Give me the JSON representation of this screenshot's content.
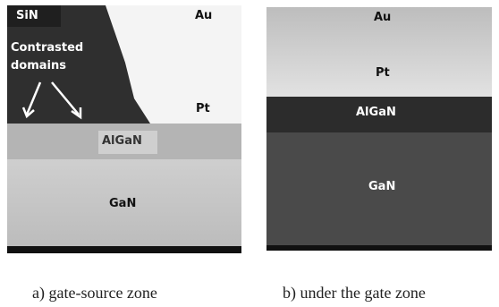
{
  "panels": [
    {
      "labels": {
        "sin": "SiN",
        "au": "Au",
        "domains": "Contrasted domains",
        "pt": "Pt",
        "algan": "AlGaN",
        "gan": "GaN"
      },
      "caption": "a) gate-source zone"
    },
    {
      "labels": {
        "au": "Au",
        "pt": "Pt",
        "algan": "AlGaN",
        "gan": "GaN"
      },
      "caption": "b) under the gate zone"
    }
  ]
}
